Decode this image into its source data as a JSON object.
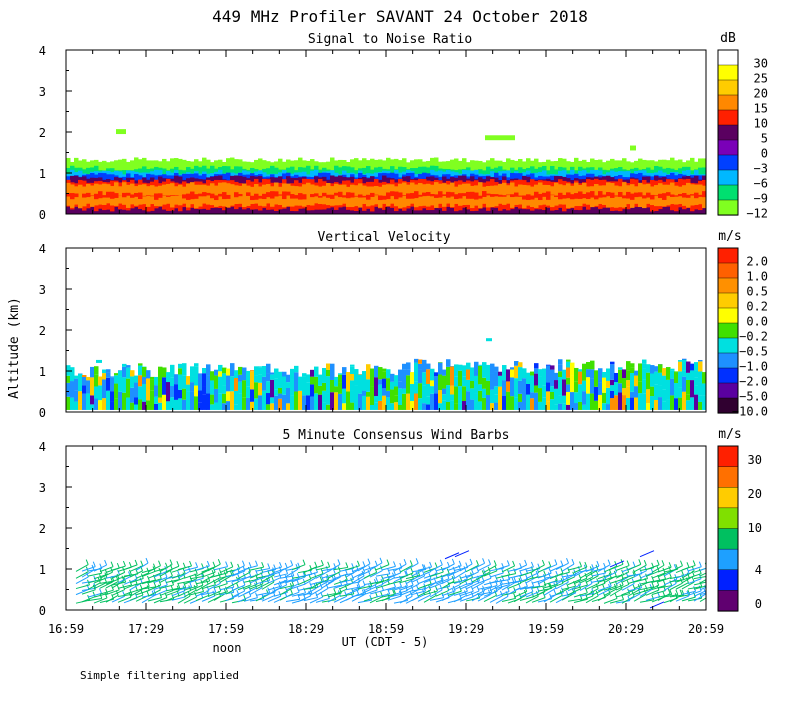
{
  "title": "449 MHz Profiler SAVANT 24 October 2018",
  "ylabel": "Altitude (km)",
  "xlabel": "UT  (CDT - 5)",
  "noon_label": "noon",
  "footer": "Simple filtering applied",
  "chart_data": [
    {
      "type": "heatmap",
      "title": "Signal to Noise Ratio",
      "ylabel": "Altitude (km)",
      "ylim": [
        0,
        4
      ],
      "yticks": [
        0,
        1,
        2,
        3,
        4
      ],
      "x_range": [
        "16:59",
        "20:59"
      ],
      "colorbar_unit": "dB",
      "colorbar_labels": [
        "30",
        "25",
        "20",
        "15",
        "10",
        "5",
        "0",
        "−3",
        "−6",
        "−9",
        "−12"
      ],
      "colorbar_colors": [
        "#ffffff",
        "#ffff00",
        "#ffcc00",
        "#ff8800",
        "#ff2000",
        "#5a0060",
        "#7a00b8",
        "#0040ff",
        "#00b8ff",
        "#00e070",
        "#80ff20"
      ],
      "profile": [
        {
          "altitude_km": 0.1,
          "snr_class": "5"
        },
        {
          "altitude_km": 0.4,
          "snr_class": "15"
        },
        {
          "altitude_km": 0.7,
          "snr_class": "15"
        },
        {
          "altitude_km": 0.9,
          "snr_class": "0"
        },
        {
          "altitude_km": 1.1,
          "snr_class": "−6"
        },
        {
          "altitude_km": 1.3,
          "snr_class": "−12"
        }
      ]
    },
    {
      "type": "heatmap",
      "title": "Vertical Velocity",
      "ylabel": "Altitude (km)",
      "ylim": [
        0,
        4
      ],
      "yticks": [
        0,
        1,
        2,
        3,
        4
      ],
      "x_range": [
        "16:59",
        "20:59"
      ],
      "colorbar_unit": "m/s",
      "colorbar_labels": [
        "2.0",
        "1.0",
        "0.5",
        "0.2",
        "0.0",
        "−0.2",
        "−0.5",
        "−1.0",
        "−2.0",
        "−5.0",
        "−10.0"
      ],
      "colorbar_colors": [
        "#ff2000",
        "#ff6000",
        "#ff9000",
        "#ffcc00",
        "#ffff00",
        "#40e000",
        "#00e0e0",
        "#1e90ff",
        "#0030ff",
        "#5a00a0",
        "#300030"
      ],
      "echo_top_km": 1.0
    },
    {
      "type": "scatter",
      "title": "5 Minute Consensus Wind Barbs",
      "ylabel": "Altitude (km)",
      "ylim": [
        0,
        4
      ],
      "yticks": [
        0,
        1,
        2,
        3,
        4
      ],
      "x_range": [
        "16:59",
        "20:59"
      ],
      "colorbar_unit": "m/s",
      "colorbar_labels": [
        "30",
        "20",
        "10",
        "4",
        "0"
      ],
      "colorbar_colors": [
        "#ff2000",
        "#ff7000",
        "#ffcc00",
        "#80e000",
        "#00c060",
        "#1ea0ff",
        "#0020ff",
        "#600070"
      ],
      "barb_levels_km": [
        0.2,
        0.35,
        0.5,
        0.65,
        0.8,
        0.95
      ],
      "barb_speed_class": "4-10 m/s"
    }
  ],
  "x_tick_labels": [
    "16:59",
    "17:29",
    "17:59",
    "18:29",
    "18:59",
    "19:29",
    "19:59",
    "20:29",
    "20:59"
  ]
}
